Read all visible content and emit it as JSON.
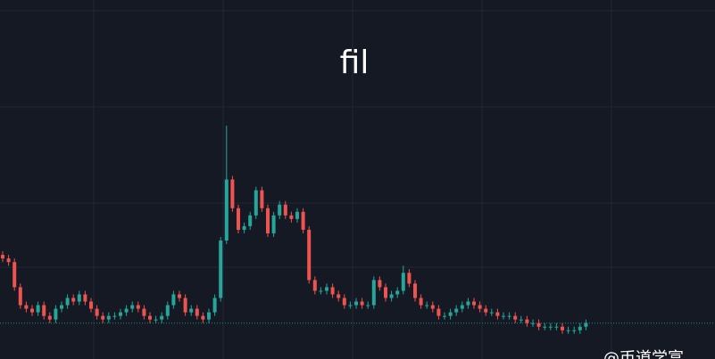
{
  "chart_data": {
    "type": "candlestick",
    "title": "fil",
    "watermark": "@币道学富",
    "up_color": "#26a69a",
    "down_color": "#ef5350",
    "ylim": [
      0,
      100
    ],
    "open": [
      29,
      28,
      27,
      20,
      15,
      14,
      13,
      15,
      12,
      11,
      14,
      15,
      17,
      16,
      18,
      16,
      14,
      12,
      11,
      12,
      12,
      13,
      14,
      15,
      14,
      12,
      11,
      11,
      12,
      15,
      18,
      17,
      13,
      14,
      12,
      11,
      13,
      17,
      33,
      50,
      42,
      36,
      37,
      40,
      47,
      42,
      35,
      40,
      43,
      40,
      39,
      41,
      36,
      22,
      19,
      19,
      20,
      18,
      17,
      15,
      15,
      16,
      15,
      15,
      22,
      20,
      17,
      18,
      19,
      24,
      21,
      17,
      15,
      15,
      14,
      12,
      12,
      13,
      14,
      15,
      16,
      15,
      14,
      13,
      13,
      12,
      12,
      12,
      11,
      11,
      10,
      10,
      9,
      9,
      9,
      9,
      8,
      8,
      8,
      9
    ],
    "high": [
      30,
      29,
      28,
      21,
      16,
      15,
      16,
      16,
      13,
      15,
      16,
      18,
      18,
      19,
      19,
      17,
      15,
      13,
      13,
      13,
      14,
      15,
      16,
      16,
      15,
      13,
      12,
      13,
      16,
      19,
      19,
      18,
      15,
      15,
      13,
      14,
      18,
      34,
      65,
      51,
      43,
      38,
      41,
      48,
      48,
      43,
      41,
      44,
      44,
      41,
      42,
      42,
      37,
      23,
      20,
      21,
      21,
      19,
      18,
      16,
      17,
      17,
      16,
      23,
      23,
      21,
      19,
      20,
      26,
      25,
      22,
      18,
      16,
      16,
      15,
      13,
      14,
      15,
      16,
      17,
      17,
      16,
      15,
      14,
      14,
      13,
      13,
      13,
      12,
      12,
      11,
      11,
      10,
      10,
      10,
      10,
      9,
      9,
      10,
      11
    ],
    "low": [
      27,
      26,
      19,
      14,
      13,
      12,
      12,
      11,
      10,
      10,
      13,
      14,
      15,
      15,
      15,
      13,
      11,
      10,
      10,
      11,
      11,
      12,
      13,
      13,
      11,
      10,
      10,
      10,
      11,
      14,
      16,
      12,
      12,
      11,
      10,
      10,
      12,
      16,
      32,
      41,
      35,
      35,
      36,
      39,
      41,
      34,
      34,
      39,
      39,
      38,
      38,
      35,
      21,
      18,
      18,
      18,
      17,
      16,
      14,
      14,
      14,
      14,
      14,
      14,
      19,
      16,
      16,
      17,
      18,
      20,
      16,
      14,
      14,
      13,
      11,
      11,
      11,
      12,
      13,
      14,
      14,
      13,
      12,
      12,
      11,
      11,
      11,
      10,
      10,
      9,
      9,
      8,
      8,
      8,
      8,
      7,
      7,
      7,
      7,
      8
    ],
    "close": [
      28,
      27,
      20,
      15,
      14,
      13,
      15,
      12,
      11,
      14,
      15,
      17,
      16,
      18,
      16,
      14,
      12,
      11,
      12,
      12,
      13,
      14,
      15,
      14,
      12,
      11,
      11,
      12,
      15,
      18,
      17,
      13,
      14,
      12,
      11,
      13,
      17,
      33,
      50,
      42,
      36,
      37,
      40,
      47,
      42,
      35,
      40,
      43,
      40,
      39,
      41,
      36,
      22,
      19,
      19,
      20,
      18,
      17,
      15,
      15,
      16,
      15,
      15,
      22,
      20,
      17,
      18,
      19,
      24,
      21,
      17,
      15,
      15,
      14,
      12,
      12,
      13,
      14,
      15,
      16,
      15,
      14,
      13,
      13,
      12,
      12,
      12,
      11,
      11,
      10,
      10,
      9,
      9,
      9,
      9,
      8,
      8,
      8,
      9,
      10
    ]
  }
}
